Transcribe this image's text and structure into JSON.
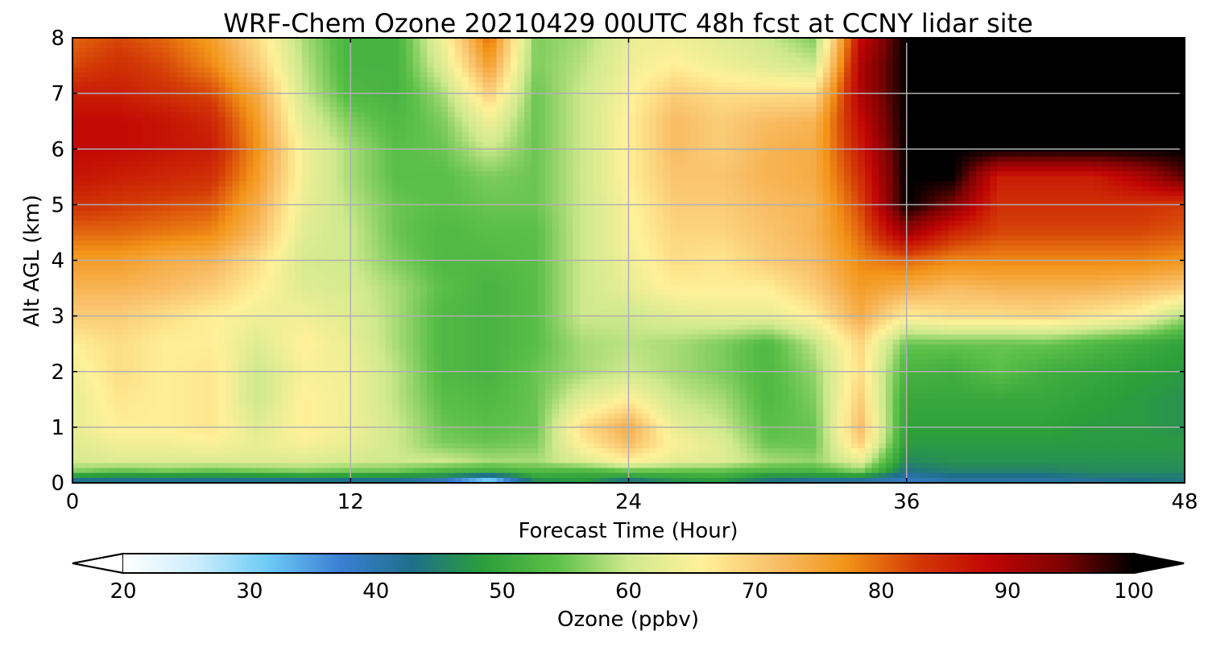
{
  "chart_data": {
    "type": "heatmap",
    "title": "WRF-Chem Ozone  20210429 00UTC 48h fcst at CCNY lidar site",
    "xlabel": "Forecast Time (Hour)",
    "ylabel": "Alt AGL (km)",
    "xlim": [
      0,
      48
    ],
    "ylim": [
      0,
      8
    ],
    "x_ticks": [
      0,
      12,
      24,
      36,
      48
    ],
    "y_ticks": [
      0,
      1,
      2,
      3,
      4,
      5,
      6,
      7,
      8
    ],
    "grid": true,
    "colorbar": {
      "label": "Ozone  (ppbv)",
      "range": [
        20,
        100
      ],
      "ticks": [
        20,
        30,
        40,
        50,
        60,
        70,
        80,
        90,
        100
      ],
      "extend": "both",
      "orientation": "horizontal",
      "colors": [
        "#ffffff",
        "#cdeefd",
        "#6dcbf7",
        "#3b7fd4",
        "#1e6f8a",
        "#2c9f3a",
        "#5cc048",
        "#cfe98e",
        "#fff199",
        "#f9c06a",
        "#f39418",
        "#d33a06",
        "#c10505",
        "#7e0303",
        "#000000"
      ],
      "over_color": "#000000",
      "under_color": "#ffffff"
    },
    "x": [
      0,
      2,
      4,
      6,
      8,
      10,
      12,
      14,
      16,
      18,
      20,
      22,
      24,
      26,
      28,
      30,
      32,
      34,
      36,
      38,
      40,
      42,
      44,
      46,
      48
    ],
    "y": [
      0,
      0.1,
      0.2,
      0.4,
      0.7,
      1,
      1.5,
      2,
      2.5,
      3,
      3.5,
      4,
      4.5,
      5,
      5.5,
      6,
      6.5,
      7,
      7.5,
      8
    ],
    "z": [
      [
        40,
        40,
        40,
        40,
        40,
        40,
        40,
        40,
        35,
        25,
        45,
        48,
        40,
        46,
        47,
        42,
        38,
        38,
        38,
        40,
        40,
        40,
        40,
        42,
        44
      ],
      [
        46,
        45,
        45,
        45,
        45,
        46,
        46,
        45,
        45,
        38,
        49,
        49,
        48,
        49,
        50,
        46,
        46,
        46,
        40,
        42,
        42,
        42,
        44,
        44,
        44
      ],
      [
        56,
        54,
        55,
        54,
        55,
        56,
        55,
        55,
        52,
        51,
        53,
        52,
        54,
        54,
        54,
        52,
        52,
        56,
        43,
        45,
        45,
        45,
        46,
        46,
        46
      ],
      [
        61,
        62,
        62,
        62,
        62,
        62,
        61,
        60,
        60,
        58,
        58,
        62,
        66,
        63,
        62,
        58,
        57,
        63,
        46,
        47,
        47,
        47,
        47,
        47,
        47
      ],
      [
        62,
        64,
        64,
        65,
        63,
        65,
        63,
        60,
        56,
        55,
        56,
        66,
        72,
        65,
        62,
        55,
        55,
        70,
        48,
        48,
        48,
        48,
        48,
        48,
        48
      ],
      [
        63,
        66,
        66,
        67,
        62,
        66,
        64,
        60,
        55,
        54,
        55,
        68,
        74,
        63,
        60,
        54,
        55,
        72,
        49,
        49,
        49,
        49,
        48,
        48,
        47
      ],
      [
        63,
        67,
        66,
        67,
        60,
        66,
        64,
        59,
        54,
        53,
        55,
        62,
        66,
        60,
        58,
        53,
        56,
        70,
        50,
        50,
        50,
        50,
        49,
        48,
        47
      ],
      [
        64,
        68,
        66,
        67,
        60,
        65,
        64,
        59,
        53,
        52,
        55,
        58,
        60,
        58,
        56,
        53,
        57,
        68,
        52,
        51,
        54,
        51,
        50,
        49,
        48
      ],
      [
        66,
        68,
        66,
        66,
        62,
        66,
        63,
        58,
        53,
        52,
        54,
        58,
        59,
        58,
        56,
        53,
        59,
        69,
        55,
        55,
        55,
        55,
        53,
        51,
        49
      ],
      [
        70,
        70,
        68,
        66,
        64,
        64,
        62,
        58,
        53,
        52,
        54,
        60,
        60,
        62,
        63,
        63,
        66,
        74,
        66,
        68,
        68,
        69,
        67,
        65,
        58
      ],
      [
        73,
        73,
        72,
        70,
        66,
        62,
        61,
        58,
        54,
        52,
        54,
        60,
        63,
        66,
        66,
        66,
        70,
        76,
        74,
        72,
        73,
        73,
        73,
        72,
        70
      ],
      [
        76,
        76,
        74,
        73,
        68,
        61,
        60,
        56,
        53,
        53,
        54,
        60,
        64,
        68,
        67,
        70,
        72,
        78,
        80,
        78,
        78,
        78,
        78,
        78,
        77
      ],
      [
        80,
        80,
        79,
        78,
        72,
        62,
        60,
        55,
        53,
        54,
        54,
        60,
        65,
        69,
        69,
        71,
        73,
        80,
        92,
        85,
        82,
        82,
        82,
        82,
        81
      ],
      [
        84,
        83,
        82,
        81,
        74,
        63,
        59,
        55,
        54,
        55,
        55,
        60,
        65,
        70,
        70,
        72,
        73,
        82,
        100,
        94,
        84,
        84,
        84,
        84,
        83
      ],
      [
        87,
        86,
        85,
        84,
        76,
        64,
        58,
        54,
        54,
        56,
        55,
        60,
        66,
        71,
        71,
        73,
        74,
        84,
        100,
        100,
        86,
        86,
        86,
        90,
        96
      ],
      [
        88,
        88,
        87,
        86,
        77,
        64,
        58,
        54,
        55,
        60,
        55,
        60,
        66,
        72,
        70,
        73,
        74,
        86,
        100,
        100,
        100,
        100,
        100,
        100,
        100
      ],
      [
        88,
        88,
        87,
        85,
        76,
        62,
        56,
        53,
        56,
        64,
        55,
        60,
        66,
        72,
        70,
        72,
        73,
        88,
        100,
        100,
        100,
        100,
        100,
        100,
        100
      ],
      [
        86,
        86,
        84,
        82,
        74,
        60,
        53,
        52,
        58,
        70,
        55,
        60,
        65,
        70,
        68,
        68,
        68,
        90,
        100,
        100,
        100,
        100,
        100,
        100,
        100
      ],
      [
        82,
        84,
        82,
        78,
        70,
        59,
        52,
        52,
        62,
        76,
        56,
        59,
        64,
        66,
        64,
        62,
        60,
        90,
        100,
        100,
        100,
        100,
        100,
        100,
        100
      ],
      [
        80,
        82,
        80,
        76,
        68,
        58,
        52,
        52,
        64,
        80,
        56,
        58,
        63,
        64,
        62,
        60,
        56,
        88,
        100,
        100,
        100,
        100,
        100,
        100,
        100
      ]
    ]
  }
}
